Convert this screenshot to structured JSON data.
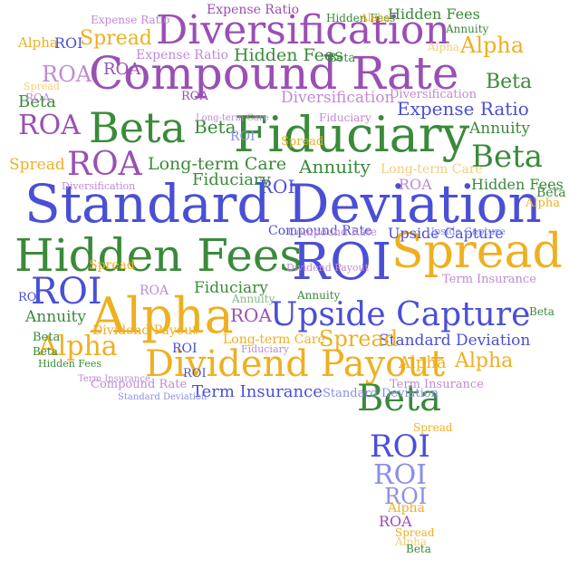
{
  "palette": {
    "blue": "#4a4fd6",
    "green": "#3a8a3a",
    "purple": "#9a4fb5",
    "gold": "#eeb021",
    "pblue": "#8a8fe6",
    "pgreen": "#86b886",
    "ppurple": "#c08ad3",
    "pgold": "#f2cf7a"
  },
  "words": {
    "w01": "Standard Deviation",
    "w02": "Compound Rate",
    "w03": "Diversification",
    "w04": "Fiduciary",
    "w05": "Hidden Fees",
    "w06": "ROI",
    "w07": "Spread",
    "w08": "Alpha",
    "w09": "Dividend Payout",
    "w10": "Upside Capture",
    "w11": "Beta",
    "w12": "Beta",
    "w13": "Beta",
    "w14": "ROA",
    "w15": "ROA",
    "w16": "ROI",
    "w17": "Expense Ratio",
    "w18": "Long-term Care",
    "w19": "Annuity",
    "w20": "Hidden Fees",
    "w21": "Spread",
    "w22": "Alpha",
    "w23": "Term Insurance",
    "w24": "Standard Deviation",
    "w25": "Spread",
    "w26": "Alpha",
    "w27": "Beta",
    "w28": "ROI",
    "w29": "ROI",
    "w30": "ROI",
    "w31": "Alpha",
    "w32": "ROA",
    "w33": "Beta",
    "w34": "Hidden Fees",
    "w35": "Expense Ratio",
    "w36": "Diversification",
    "w37": "Fiduciary",
    "w38": "Annuity",
    "w39": "ROA",
    "w40": "Alpha",
    "w41": "Spread",
    "w42": "Beta",
    "w43": "ROA",
    "w44": "Compound Rate",
    "w45": "Term Insurance",
    "w46": "Beta",
    "w47": "ROA",
    "w48": "ROI",
    "w49": "Hidden Fees",
    "w50": "Dividend Payout",
    "w51": "Fiduciary",
    "w52": "Annuity",
    "w53": "Long-term Care",
    "w54": "Upside Capture",
    "w55": "Spread",
    "w56": "Compound Rate",
    "w57": "Standard Deviation",
    "w58": "Term Insurance",
    "w59": "Alpha",
    "w60": "Beta",
    "w61": "Annuity",
    "w62": "ROI",
    "w63": "ROI",
    "w64": "Alpha",
    "w65": "ROA",
    "w66": "Alpha",
    "w67": "Beta",
    "w68": "Spread",
    "w69": "ROA",
    "w70": "Long-term Care",
    "w71": "Expense Ratio",
    "w72": "Diversification",
    "w73": "Fiduciary",
    "w74": "ROI",
    "w75": "Annuity",
    "w76": "Spread",
    "w77": "Hidden Fees",
    "w78": "Alpha",
    "w79": "Beta",
    "w80": "Expense Ratio",
    "w81": "Diversification",
    "w82": "Spread",
    "w83": "Alpha",
    "w84": "Beta",
    "w85": "Annuity",
    "w86": "Long-term Care",
    "w87": "ROA",
    "w88": "Upside Capture",
    "w89": "Compound Rate",
    "w90": "Fiduciary",
    "w91": "ROI",
    "w92": "Standard Deviation",
    "w93": "ROA",
    "w94": "Hidden Fees",
    "w95": "ROI",
    "w96": "Beta",
    "w97": "Alpha",
    "w98": "Term Insurance",
    "w99": "Spread",
    "w100": "Dividend Payout"
  }
}
